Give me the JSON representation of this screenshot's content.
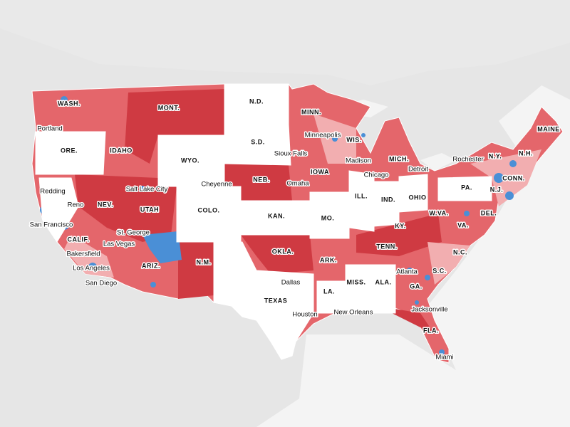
{
  "state_labels": [
    "WASH.",
    "MONT.",
    "N.D.",
    "MINN.",
    "MAINE",
    "ORE.",
    "IDAHO",
    "S.D.",
    "WIS.",
    "MICH.",
    "N.Y.",
    "N.H.",
    "WYO.",
    "NEB.",
    "IOWA",
    "CONN.",
    "PA.",
    "N.J.",
    "NEV.",
    "UTAH",
    "COLO.",
    "KAN.",
    "ILL.",
    "IND.",
    "OHIO",
    "MO.",
    "W.VA.",
    "DEL.",
    "KY.",
    "VA.",
    "CALIF.",
    "OKLA.",
    "TENN.",
    "N.C.",
    "ARIZ.",
    "N.M.",
    "ARK.",
    "S.C.",
    "MISS.",
    "ALA.",
    "GA.",
    "TEXAS",
    "LA.",
    "FLA."
  ],
  "city_labels": [
    "Portland",
    "Minneapolis",
    "Sioux Falls",
    "Madison",
    "Detroit",
    "Rochester",
    "Chicago",
    "Cheyenne",
    "Omaha",
    "Salt Lake City",
    "Redding",
    "Reno",
    "San Francisco",
    "St. George",
    "Las Vegas",
    "Bakersfield",
    "Los Angeles",
    "San Diego",
    "Atlanta",
    "Dallas",
    "Houston",
    "New Orleans",
    "Jacksonville",
    "Miami"
  ]
}
